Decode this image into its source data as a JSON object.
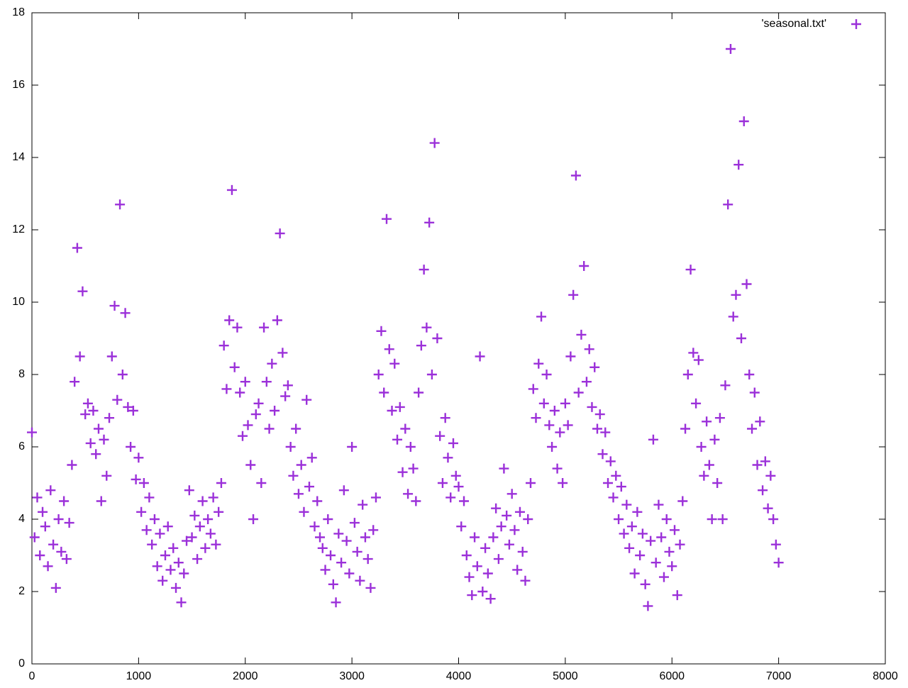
{
  "chart_data": {
    "type": "scatter",
    "legend": "'seasonal.txt'",
    "legend_position": "top-right",
    "color": "#9b30d9",
    "xlim": [
      0,
      8000
    ],
    "xticks": [
      0,
      1000,
      2000,
      3000,
      4000,
      5000,
      6000,
      7000,
      8000
    ],
    "ylim": [
      0,
      18
    ],
    "yticks": [
      0,
      2,
      4,
      6,
      8,
      10,
      12,
      14,
      16,
      18
    ],
    "x": [
      0,
      25,
      50,
      75,
      100,
      125,
      150,
      175,
      200,
      225,
      250,
      275,
      300,
      325,
      350,
      375,
      400,
      425,
      450,
      475,
      500,
      525,
      550,
      575,
      600,
      625,
      650,
      675,
      700,
      725,
      750,
      775,
      800,
      825,
      850,
      875,
      900,
      925,
      950,
      975,
      1000,
      1025,
      1050,
      1075,
      1100,
      1125,
      1150,
      1175,
      1200,
      1225,
      1250,
      1275,
      1300,
      1325,
      1350,
      1375,
      1400,
      1425,
      1450,
      1475,
      1500,
      1525,
      1550,
      1575,
      1600,
      1625,
      1650,
      1675,
      1700,
      1725,
      1750,
      1775,
      1800,
      1825,
      1850,
      1875,
      1900,
      1925,
      1950,
      1975,
      2000,
      2025,
      2050,
      2075,
      2100,
      2125,
      2150,
      2175,
      2200,
      2225,
      2250,
      2275,
      2300,
      2325,
      2350,
      2375,
      2400,
      2425,
      2450,
      2475,
      2500,
      2525,
      2550,
      2575,
      2600,
      2625,
      2650,
      2675,
      2700,
      2725,
      2750,
      2775,
      2800,
      2825,
      2850,
      2875,
      2900,
      2925,
      2950,
      2975,
      3000,
      3025,
      3050,
      3075,
      3100,
      3125,
      3150,
      3175,
      3200,
      3225,
      3250,
      3275,
      3300,
      3325,
      3350,
      3375,
      3400,
      3425,
      3450,
      3475,
      3500,
      3525,
      3550,
      3575,
      3600,
      3625,
      3650,
      3675,
      3700,
      3725,
      3750,
      3775,
      3800,
      3825,
      3850,
      3875,
      3900,
      3925,
      3950,
      3975,
      4000,
      4025,
      4050,
      4075,
      4100,
      4125,
      4150,
      4175,
      4200,
      4225,
      4250,
      4275,
      4300,
      4325,
      4350,
      4375,
      4400,
      4425,
      4450,
      4475,
      4500,
      4525,
      4550,
      4575,
      4600,
      4625,
      4650,
      4675,
      4700,
      4725,
      4750,
      4775,
      4800,
      4825,
      4850,
      4875,
      4900,
      4925,
      4950,
      4975,
      5000,
      5025,
      5050,
      5075,
      5100,
      5125,
      5150,
      5175,
      5200,
      5225,
      5250,
      5275,
      5300,
      5325,
      5350,
      5375,
      5400,
      5425,
      5450,
      5475,
      5500,
      5525,
      5550,
      5575,
      5600,
      5625,
      5650,
      5675,
      5700,
      5725,
      5750,
      5775,
      5800,
      5825,
      5850,
      5875,
      5900,
      5925,
      5950,
      5975,
      6000,
      6025,
      6050,
      6075,
      6100,
      6125,
      6150,
      6175,
      6200,
      6225,
      6250,
      6275,
      6300,
      6325,
      6350,
      6375,
      6400,
      6425,
      6450,
      6475,
      6500,
      6525,
      6550,
      6575,
      6600,
      6625,
      6650,
      6675,
      6700,
      6725,
      6750,
      6775,
      6800,
      6825,
      6850,
      6875,
      6900,
      6925,
      6950,
      6975,
      7000
    ],
    "values": [
      6.4,
      3.5,
      4.6,
      3.0,
      4.2,
      3.8,
      2.7,
      4.8,
      3.3,
      2.1,
      4.0,
      3.1,
      4.5,
      2.9,
      3.9,
      5.5,
      7.8,
      11.5,
      8.5,
      10.3,
      6.9,
      7.2,
      6.1,
      7.0,
      5.8,
      6.5,
      4.5,
      6.2,
      5.2,
      6.8,
      8.5,
      9.9,
      7.3,
      12.7,
      8.0,
      9.7,
      7.1,
      6.0,
      7.0,
      5.1,
      5.7,
      4.2,
      5.0,
      3.7,
      4.6,
      3.3,
      4.0,
      2.7,
      3.6,
      2.3,
      3.0,
      3.8,
      2.6,
      3.2,
      2.1,
      2.8,
      1.7,
      2.5,
      3.4,
      4.8,
      3.5,
      4.1,
      2.9,
      3.8,
      4.5,
      3.2,
      4.0,
      3.6,
      4.6,
      3.3,
      4.2,
      5.0,
      8.8,
      7.6,
      9.5,
      13.1,
      8.2,
      9.3,
      7.5,
      6.3,
      7.8,
      6.6,
      5.5,
      4.0,
      6.9,
      7.2,
      5.0,
      9.3,
      7.8,
      6.5,
      8.3,
      7.0,
      9.5,
      11.9,
      8.6,
      7.4,
      7.7,
      6.0,
      5.2,
      6.5,
      4.7,
      5.5,
      4.2,
      7.3,
      4.9,
      5.7,
      3.8,
      4.5,
      3.5,
      3.2,
      2.6,
      4.0,
      3.0,
      2.2,
      1.7,
      3.6,
      2.8,
      4.8,
      3.4,
      2.5,
      6.0,
      3.9,
      3.1,
      2.3,
      4.4,
      3.5,
      2.9,
      2.1,
      3.7,
      4.6,
      8.0,
      9.2,
      7.5,
      12.3,
      8.7,
      7.0,
      8.3,
      6.2,
      7.1,
      5.3,
      6.5,
      4.7,
      6.0,
      5.4,
      4.5,
      7.5,
      8.8,
      10.9,
      9.3,
      12.2,
      8.0,
      14.4,
      9.0,
      6.3,
      5.0,
      6.8,
      5.7,
      4.6,
      6.1,
      5.2,
      4.9,
      3.8,
      4.5,
      3.0,
      2.4,
      1.9,
      3.5,
      2.7,
      8.5,
      2.0,
      3.2,
      2.5,
      1.8,
      3.5,
      4.3,
      2.9,
      3.8,
      5.4,
      4.1,
      3.3,
      4.7,
      3.7,
      2.6,
      4.2,
      3.1,
      2.3,
      4.0,
      5.0,
      7.6,
      6.8,
      8.3,
      9.6,
      7.2,
      8.0,
      6.6,
      6.0,
      7.0,
      5.4,
      6.4,
      5.0,
      7.2,
      6.6,
      8.5,
      10.2,
      13.5,
      7.5,
      9.1,
      11.0,
      7.8,
      8.7,
      7.1,
      8.2,
      6.5,
      6.9,
      5.8,
      6.4,
      5.0,
      5.6,
      4.6,
      5.2,
      4.0,
      4.9,
      3.6,
      4.4,
      3.2,
      3.8,
      2.5,
      4.2,
      3.0,
      3.6,
      2.2,
      1.6,
      3.4,
      6.2,
      2.8,
      4.4,
      3.5,
      2.4,
      4.0,
      3.1,
      2.7,
      3.7,
      1.9,
      3.3,
      4.5,
      6.5,
      8.0,
      10.9,
      8.6,
      7.2,
      8.4,
      6.0,
      5.2,
      6.7,
      5.5,
      4.0,
      6.2,
      5.0,
      6.8,
      4.0,
      7.7,
      12.7,
      17.0,
      9.6,
      10.2,
      13.8,
      9.0,
      15.0,
      10.5,
      8.0,
      6.5,
      7.5,
      5.5,
      6.7,
      4.8,
      5.6,
      4.3,
      5.2,
      4.0,
      3.3,
      2.8
    ]
  }
}
